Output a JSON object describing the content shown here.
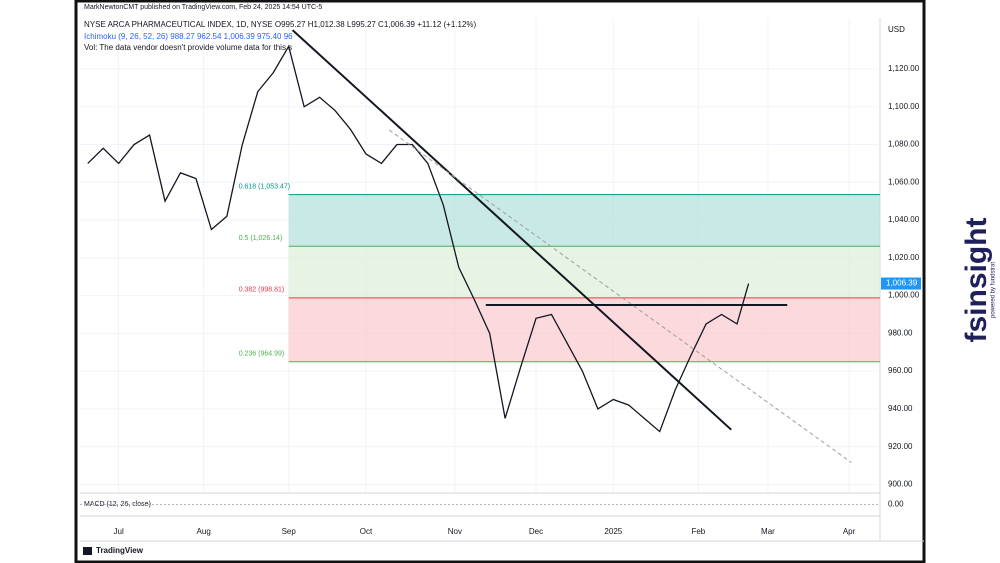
{
  "chart_data": {
    "type": "line",
    "publisher": "MarkNewtonCMT published on TradingView.com, Feb 24, 2025 14:54 UTC-5",
    "title": "NYSE ARCA PHARMACEUTICAL INDEX, 1D, NYSE  O995.27 H1,012.38 L995.27 C1,006.39 +11.12 (+1.12%)",
    "indicator_line": "Ichimoku (9, 26, 52, 26)  988.27  962.54  1,006.39  975.40  96",
    "volume_note": "Vol: The data vendor doesn't provide volume data for this s",
    "currency": "USD",
    "xlim": [
      -10,
      197
    ],
    "xticks": [
      {
        "value": 0,
        "label": "Jul"
      },
      {
        "value": 22,
        "label": "Aug"
      },
      {
        "value": 44,
        "label": "Sep"
      },
      {
        "value": 64,
        "label": "Oct"
      },
      {
        "value": 87,
        "label": "Nov"
      },
      {
        "value": 108,
        "label": "Dec"
      },
      {
        "value": 128,
        "label": "2025"
      },
      {
        "value": 150,
        "label": "Feb"
      },
      {
        "value": 168,
        "label": "Mar"
      },
      {
        "value": 189,
        "label": "Apr"
      }
    ],
    "ylim": [
      896,
      1147
    ],
    "yticks": [
      {
        "value": 900,
        "label": "900.00"
      },
      {
        "value": 920,
        "label": "920.00"
      },
      {
        "value": 940,
        "label": "940.00"
      },
      {
        "value": 960,
        "label": "960.00"
      },
      {
        "value": 980,
        "label": "980.00"
      },
      {
        "value": 1000,
        "label": "1,000.00"
      },
      {
        "value": 1020,
        "label": "1,020.00"
      },
      {
        "value": 1040,
        "label": "1,040.00"
      },
      {
        "value": 1060,
        "label": "1,060.00"
      },
      {
        "value": 1080,
        "label": "1,080.00"
      },
      {
        "value": 1100,
        "label": "1,100.00"
      },
      {
        "value": 1120,
        "label": "1,120.00"
      }
    ],
    "series": [
      {
        "name": "NYSE ARCA PHARMACEUTICAL INDEX",
        "color": "#131722",
        "x": [
          -8,
          -4,
          0,
          4,
          8,
          12,
          16,
          20,
          24,
          28,
          32,
          36,
          40,
          44,
          48,
          52,
          56,
          60,
          64,
          68,
          72,
          76,
          80,
          84,
          88,
          92,
          96,
          100,
          104,
          108,
          112,
          116,
          120,
          124,
          128,
          132,
          136,
          140,
          144,
          148,
          152,
          156,
          160,
          163
        ],
        "values": [
          1070,
          1078,
          1070,
          1080,
          1085,
          1050,
          1065,
          1062,
          1035,
          1042,
          1080,
          1108,
          1118,
          1132,
          1100,
          1105,
          1098,
          1088,
          1075,
          1070,
          1080,
          1080,
          1070,
          1048,
          1015,
          998,
          980,
          935,
          962,
          988,
          990,
          975,
          960,
          940,
          945,
          942,
          935,
          928,
          950,
          968,
          985,
          990,
          985,
          1006.39
        ]
      }
    ],
    "last_price": {
      "value": 1006.39,
      "label": "1,006.39",
      "color": "#2196f3"
    },
    "fib_start": 44,
    "fib_levels": [
      {
        "value": 1053.47,
        "label": "0.618 (1,053.47)",
        "color": "#009688"
      },
      {
        "value": 1026.14,
        "label": "0.5 (1,026.14)",
        "color": "#4caf50"
      },
      {
        "value": 998.81,
        "label": "0.382 (998.81)",
        "color": "#f23645"
      },
      {
        "value": 964.99,
        "label": "0.236 (964.99)",
        "color": "#4caf50"
      }
    ],
    "fib_fills": [
      "#b2dfdb",
      "#dcefd9",
      "#f9c9cd"
    ],
    "trendlines": [
      {
        "x": [
          45,
          158.5
        ],
        "y": [
          1140.6,
          929
        ],
        "color": "#131722",
        "dashed": false
      },
      {
        "x": [
          95,
          173
        ],
        "y": [
          995,
          995
        ],
        "color": "#131722",
        "dashed": false
      },
      {
        "x": [
          70,
          189.6
        ],
        "y": [
          1087.7,
          911.6
        ],
        "color": "#9e9e9e",
        "dashed": true
      }
    ],
    "macd": {
      "title": "MACD (12, 26, close)",
      "ylim": [
        -1,
        1
      ],
      "yticks": [
        {
          "value": 0,
          "label": "0.00"
        }
      ]
    },
    "footer": "TradingView",
    "logo": {
      "brand": "fsinsight",
      "tagline": "powered by fundstrat"
    }
  }
}
